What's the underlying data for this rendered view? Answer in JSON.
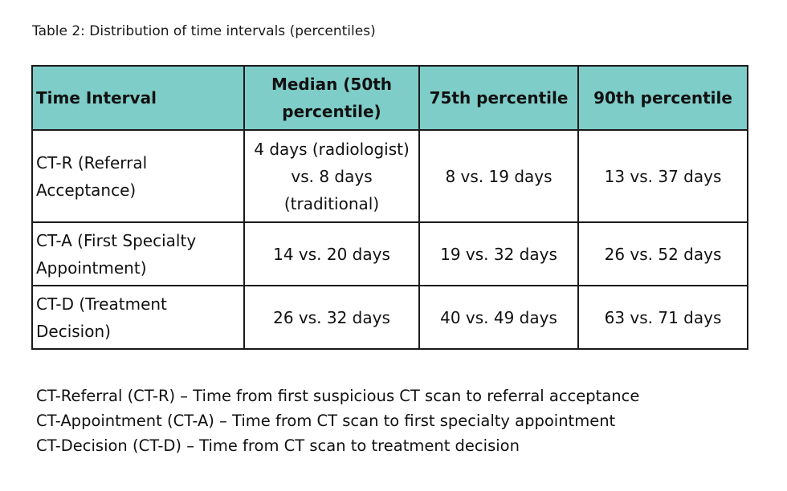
{
  "caption": "Table 2: Distribution of time intervals (percentiles)",
  "table": {
    "headers": [
      "Time Interval",
      "Median (50th percentile)",
      "75th percentile",
      "90th percentile"
    ],
    "rows": [
      [
        "CT-R (Referral Acceptance)",
        "4 days (radiologist) vs. 8 days (traditional)",
        "8 vs. 19 days",
        "13 vs. 37 days"
      ],
      [
        "CT-A (First Specialty Appointment)",
        "14 vs. 20 days",
        "19 vs. 32 days",
        "26 vs. 52 days"
      ],
      [
        "CT-D (Treatment Decision)",
        "26 vs. 32 days",
        "40 vs. 49 days",
        "63 vs. 71 days"
      ]
    ],
    "header_color": "#7ecdc8"
  },
  "footnotes": [
    "CT-Referral (CT-R) – Time from first suspicious CT scan to referral acceptance",
    "CT-Appointment (CT-A) – Time from CT scan to first specialty appointment",
    "CT-Decision (CT-D) – Time from CT scan to treatment decision"
  ]
}
